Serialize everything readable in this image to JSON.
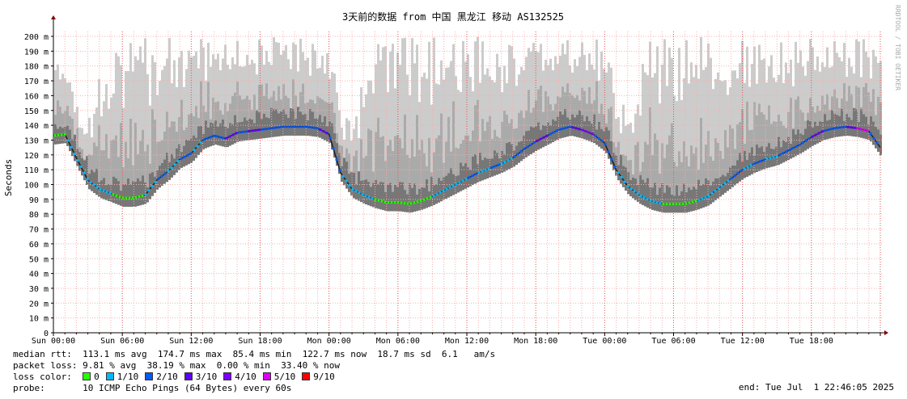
{
  "chart_data": {
    "type": "line",
    "title": "3天前的数据 from 中国 黑龙江 移动 AS132525",
    "ylabel": "Seconds",
    "watermark": "RRDTOOL / TOBI OETIKER",
    "ylim": [
      0,
      205
    ],
    "y_ticks": [
      {
        "value": 0,
        "label": "0"
      },
      {
        "value": 10,
        "label": "10 m"
      },
      {
        "value": 20,
        "label": "20 m"
      },
      {
        "value": 30,
        "label": "30 m"
      },
      {
        "value": 40,
        "label": "40 m"
      },
      {
        "value": 50,
        "label": "50 m"
      },
      {
        "value": 60,
        "label": "60 m"
      },
      {
        "value": 70,
        "label": "70 m"
      },
      {
        "value": 80,
        "label": "80 m"
      },
      {
        "value": 90,
        "label": "90 m"
      },
      {
        "value": 100,
        "label": "100 m"
      },
      {
        "value": 110,
        "label": "110 m"
      },
      {
        "value": 120,
        "label": "120 m"
      },
      {
        "value": 130,
        "label": "130 m"
      },
      {
        "value": 140,
        "label": "140 m"
      },
      {
        "value": 150,
        "label": "150 m"
      },
      {
        "value": 160,
        "label": "160 m"
      },
      {
        "value": 170,
        "label": "170 m"
      },
      {
        "value": 180,
        "label": "180 m"
      },
      {
        "value": 190,
        "label": "190 m"
      },
      {
        "value": 200,
        "label": "200 m"
      }
    ],
    "xlim": [
      0,
      72
    ],
    "x_ticks": [
      {
        "hour": 0,
        "label": "Sun 00:00"
      },
      {
        "hour": 6,
        "label": "Sun 06:00"
      },
      {
        "hour": 12,
        "label": "Sun 12:00"
      },
      {
        "hour": 18,
        "label": "Sun 18:00"
      },
      {
        "hour": 24,
        "label": "Mon 00:00"
      },
      {
        "hour": 30,
        "label": "Mon 06:00"
      },
      {
        "hour": 36,
        "label": "Mon 12:00"
      },
      {
        "hour": 42,
        "label": "Mon 18:00"
      },
      {
        "hour": 48,
        "label": "Tue 00:00"
      },
      {
        "hour": 54,
        "label": "Tue 06:00"
      },
      {
        "hour": 60,
        "label": "Tue 12:00"
      },
      {
        "hour": 66,
        "label": "Tue 18:00"
      }
    ],
    "median_series": {
      "name": "median rtt",
      "x_hours": [
        0,
        1,
        2,
        3,
        4,
        5,
        6,
        7,
        8,
        9,
        10,
        11,
        12,
        13,
        14,
        15,
        16,
        17,
        18,
        19,
        20,
        21,
        22,
        23,
        24,
        25,
        26,
        27,
        28,
        29,
        30,
        31,
        32,
        33,
        34,
        35,
        36,
        37,
        38,
        39,
        40,
        41,
        42,
        43,
        44,
        45,
        46,
        47,
        48,
        49,
        50,
        51,
        52,
        53,
        54,
        55,
        56,
        57,
        58,
        59,
        60,
        61,
        62,
        63,
        64,
        65,
        66,
        67,
        68,
        69,
        70,
        71,
        72
      ],
      "values_ms": [
        133,
        134,
        118,
        103,
        97,
        94,
        91,
        91,
        93,
        103,
        109,
        117,
        121,
        130,
        133,
        131,
        135,
        136,
        137,
        138,
        139,
        139,
        139,
        138,
        134,
        108,
        97,
        93,
        90,
        88,
        88,
        87,
        89,
        92,
        96,
        100,
        104,
        108,
        111,
        114,
        118,
        124,
        129,
        133,
        137,
        139,
        137,
        134,
        128,
        110,
        99,
        93,
        89,
        87,
        87,
        87,
        89,
        92,
        98,
        104,
        110,
        114,
        117,
        119,
        123,
        127,
        132,
        136,
        138,
        139,
        138,
        136,
        125
      ],
      "loss_fraction_by_hour": [
        0,
        0.1,
        0.1,
        0.1,
        0.1,
        0,
        0,
        0,
        0.1,
        0.2,
        0.1,
        0.2,
        0.1,
        0.2,
        0.2,
        0.3,
        0.2,
        0.3,
        0.2,
        0.2,
        0.2,
        0.2,
        0.2,
        0.3,
        0.2,
        0.1,
        0.1,
        0.1,
        0,
        0,
        0,
        0,
        0,
        0.1,
        0.1,
        0.1,
        0.2,
        0.1,
        0.2,
        0.1,
        0.2,
        0.2,
        0.3,
        0.2,
        0.2,
        0.3,
        0.4,
        0.2,
        0.2,
        0.1,
        0.1,
        0.1,
        0.1,
        0,
        0,
        0,
        0.1,
        0.1,
        0.1,
        0.2,
        0.1,
        0.2,
        0.1,
        0.2,
        0.2,
        0.2,
        0.3,
        0.2,
        0.2,
        0.3,
        0.5,
        0.2,
        0.4
      ]
    },
    "smoke_upper_percentile_ms": [
      200,
      200,
      155,
      145,
      185,
      200,
      200,
      200,
      200,
      200,
      200,
      200,
      200,
      200,
      200,
      200,
      200,
      200,
      200,
      200,
      200,
      200,
      200,
      200,
      200,
      150,
      145,
      175,
      200,
      200,
      200,
      200,
      200,
      200,
      200,
      200,
      200,
      200,
      200,
      200,
      200,
      200,
      200,
      200,
      200,
      200,
      200,
      200,
      200,
      160,
      150,
      180,
      200,
      200,
      200,
      200,
      200,
      200,
      200,
      200,
      200,
      200,
      200,
      200,
      200,
      200,
      200,
      200,
      200,
      200,
      200,
      200,
      200
    ]
  },
  "stats": {
    "median_rtt": {
      "label": "median rtt:",
      "avg": "113.1 ms avg",
      "max": "174.7 ms max",
      "min": "85.4 ms min",
      "now": "122.7 ms now",
      "sd": "18.7 ms sd",
      "am": "6.1   am/s"
    },
    "packet_loss": {
      "label": "packet loss:",
      "avg": "9.81 % avg",
      "max": "38.19 % max",
      "min": "0.00 % min",
      "now": "33.40 % now"
    },
    "loss_color": {
      "label": "loss color:",
      "entries": [
        {
          "label": "0",
          "color": "#26ff00"
        },
        {
          "label": "1/10",
          "color": "#00b8ff"
        },
        {
          "label": "2/10",
          "color": "#0059ff"
        },
        {
          "label": "3/10",
          "color": "#5e00ff"
        },
        {
          "label": "4/10",
          "color": "#7e00ff"
        },
        {
          "label": "5/10",
          "color": "#dd00ff"
        },
        {
          "label": "9/10",
          "color": "#ff0000"
        }
      ]
    },
    "probe": {
      "label": "probe:",
      "value": "10 ICMP Echo Pings (64 Bytes) every 60s"
    },
    "end": {
      "label": "end:",
      "value": "Tue Jul  1 22:46:05 2025"
    }
  },
  "colors": {
    "grid": "#f4b0b0",
    "axis": "#000000",
    "arrow": "#800000",
    "smoke_light": "#cccccc",
    "smoke_mid": "#aaaaaa",
    "smoke_dark": "#777777",
    "median_line": "#202020"
  }
}
